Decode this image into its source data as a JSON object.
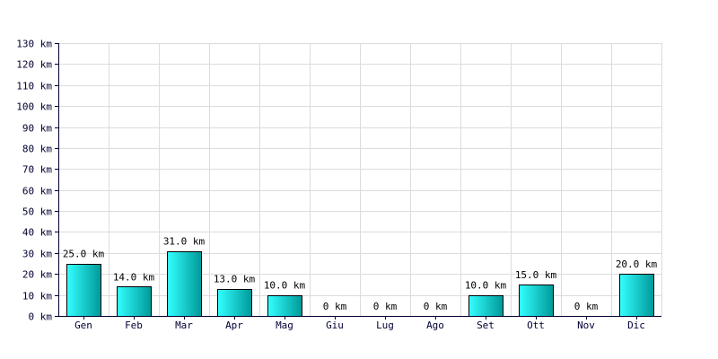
{
  "chart_data": {
    "type": "bar",
    "categories": [
      "Gen",
      "Feb",
      "Mar",
      "Apr",
      "Mag",
      "Giu",
      "Lug",
      "Ago",
      "Set",
      "Ott",
      "Nov",
      "Dic"
    ],
    "values": [
      25.0,
      14.0,
      31.0,
      13.0,
      10.0,
      0,
      0,
      0,
      10.0,
      15.0,
      0,
      20.0
    ],
    "data_labels": [
      "25.0 km",
      "14.0 km",
      "31.0 km",
      "13.0 km",
      "10.0 km",
      "0 km",
      "0 km",
      "0 km",
      "10.0 km",
      "15.0 km",
      "0 km",
      "20.0 km"
    ],
    "y_tick_labels": [
      "0 km",
      "10 km",
      "20 km",
      "30 km",
      "40 km",
      "50 km",
      "60 km",
      "70 km",
      "80 km",
      "90 km",
      "100 km",
      "110 km",
      "120 km",
      "130 km"
    ],
    "title": "",
    "xlabel": "",
    "ylabel": "",
    "ylim": [
      0,
      130
    ],
    "y_step": 10,
    "grid": true,
    "bar_color_light": "#33ffff",
    "bar_color_dark": "#009999",
    "axis_color": "#000033",
    "grid_color": "#dcdcdc"
  }
}
